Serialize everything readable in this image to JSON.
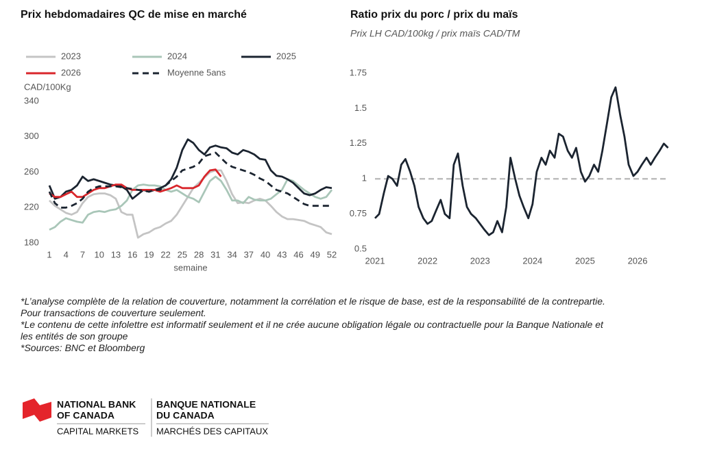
{
  "chart_data": [
    {
      "type": "line",
      "title": "Prix hebdomadaires QC de mise en marché",
      "y_label": "CAD/100Kg",
      "x_label": "semaine",
      "x": [
        1,
        2,
        3,
        4,
        5,
        6,
        7,
        8,
        9,
        10,
        11,
        12,
        13,
        14,
        15,
        16,
        17,
        18,
        19,
        20,
        21,
        22,
        23,
        24,
        25,
        26,
        27,
        28,
        29,
        30,
        31,
        32,
        33,
        34,
        35,
        36,
        37,
        38,
        39,
        40,
        41,
        42,
        43,
        44,
        45,
        46,
        47,
        48,
        49,
        50,
        51,
        52
      ],
      "xlim": [
        1,
        52
      ],
      "xticks": [
        1,
        4,
        7,
        10,
        13,
        16,
        19,
        22,
        25,
        28,
        31,
        34,
        37,
        40,
        43,
        46,
        49,
        52
      ],
      "ylim": [
        180,
        340
      ],
      "yticks": [
        180,
        220,
        260,
        300,
        340
      ],
      "grid": false,
      "series": [
        {
          "name": "2023",
          "color": "#c4c4c4",
          "style": "solid",
          "values": [
            228,
            222,
            218,
            214,
            212,
            215,
            225,
            232,
            235,
            236,
            236,
            234,
            230,
            215,
            212,
            212,
            186,
            190,
            192,
            196,
            198,
            202,
            205,
            212,
            222,
            232,
            242,
            248,
            254,
            260,
            262,
            262,
            250,
            235,
            225,
            226,
            225,
            228,
            230,
            228,
            222,
            215,
            210,
            207,
            207,
            206,
            205,
            202,
            200,
            198,
            192,
            190
          ]
        },
        {
          "name": "2024",
          "color": "#a9c6b8",
          "style": "solid",
          "values": [
            195,
            198,
            204,
            208,
            206,
            204,
            203,
            212,
            215,
            216,
            215,
            217,
            218,
            222,
            228,
            240,
            245,
            246,
            245,
            245,
            244,
            240,
            238,
            240,
            236,
            232,
            230,
            226,
            238,
            250,
            255,
            250,
            240,
            228,
            228,
            225,
            232,
            229,
            228,
            228,
            230,
            235,
            240,
            252,
            250,
            245,
            240,
            236,
            232,
            230,
            232,
            240
          ]
        },
        {
          "name": "2025",
          "color": "#1b2430",
          "style": "solid",
          "values": [
            245,
            230,
            232,
            238,
            240,
            245,
            255,
            250,
            252,
            250,
            248,
            246,
            245,
            244,
            240,
            230,
            235,
            240,
            238,
            240,
            242,
            245,
            252,
            265,
            285,
            297,
            293,
            285,
            280,
            288,
            290,
            288,
            287,
            282,
            280,
            285,
            283,
            280,
            275,
            274,
            262,
            256,
            255,
            252,
            248,
            242,
            236,
            234,
            236,
            240,
            243,
            242
          ]
        },
        {
          "name": "2026",
          "color": "#d9262b",
          "style": "solid",
          "values": [
            236,
            232,
            232,
            235,
            238,
            232,
            232,
            236,
            240,
            242,
            242,
            244,
            246,
            246,
            242,
            240,
            240,
            240,
            240,
            240,
            238,
            240,
            242,
            245,
            242,
            242,
            242,
            245,
            255,
            262,
            263,
            255,
            null,
            null,
            null,
            null,
            null,
            null,
            null,
            null,
            null,
            null,
            null,
            null,
            null,
            null,
            null,
            null,
            null,
            null,
            null,
            null
          ]
        },
        {
          "name": "Moyenne 5ans",
          "color": "#1b2430",
          "style": "dashed",
          "values": [
            238,
            225,
            220,
            220,
            222,
            225,
            230,
            238,
            242,
            244,
            244,
            244,
            244,
            243,
            242,
            241,
            240,
            239,
            238,
            240,
            240,
            245,
            250,
            255,
            262,
            264,
            266,
            270,
            278,
            280,
            282,
            276,
            270,
            266,
            264,
            262,
            260,
            257,
            253,
            250,
            245,
            240,
            238,
            236,
            232,
            228,
            224,
            222,
            222,
            222,
            222,
            222
          ]
        }
      ]
    },
    {
      "type": "line",
      "title": "Ratio prix du porc / prix du maïs",
      "subtitle": "Prix LH CAD/100kg / prix maïs CAD/TM",
      "x": [
        2021,
        2021.08,
        2021.17,
        2021.25,
        2021.33,
        2021.42,
        2021.5,
        2021.58,
        2021.67,
        2021.75,
        2021.83,
        2021.92,
        2022,
        2022.08,
        2022.17,
        2022.25,
        2022.33,
        2022.42,
        2022.5,
        2022.58,
        2022.67,
        2022.75,
        2022.83,
        2022.92,
        2023,
        2023.08,
        2023.17,
        2023.25,
        2023.33,
        2023.42,
        2023.5,
        2023.58,
        2023.67,
        2023.75,
        2023.83,
        2023.92,
        2024,
        2024.08,
        2024.17,
        2024.25,
        2024.33,
        2024.42,
        2024.5,
        2024.58,
        2024.67,
        2024.75,
        2024.83,
        2024.92,
        2025,
        2025.08,
        2025.17,
        2025.25,
        2025.33,
        2025.42,
        2025.5,
        2025.58,
        2025.67,
        2025.75,
        2025.83,
        2025.92,
        2026,
        2026.08,
        2026.17,
        2026.25,
        2026.33,
        2026.42,
        2026.5,
        2026.58
      ],
      "xlim": [
        2021,
        2026.6
      ],
      "xticks": [
        2021,
        2022,
        2023,
        2024,
        2025,
        2026
      ],
      "ylim": [
        0.5,
        1.75
      ],
      "yticks": [
        0.5,
        0.75,
        1,
        1.25,
        1.5,
        1.75
      ],
      "grid": false,
      "reference_line": {
        "value": 1,
        "color": "#bdbdbd",
        "style": "dashed"
      },
      "series": [
        {
          "name": "Ratio",
          "color": "#1b2430",
          "style": "solid",
          "values": [
            0.72,
            0.75,
            0.9,
            1.02,
            1.0,
            0.95,
            1.1,
            1.14,
            1.05,
            0.95,
            0.8,
            0.72,
            0.68,
            0.7,
            0.78,
            0.85,
            0.75,
            0.72,
            1.1,
            1.18,
            0.95,
            0.8,
            0.75,
            0.72,
            0.68,
            0.64,
            0.6,
            0.62,
            0.7,
            0.62,
            0.8,
            1.15,
            1.0,
            0.88,
            0.8,
            0.72,
            0.82,
            1.05,
            1.15,
            1.1,
            1.2,
            1.15,
            1.32,
            1.3,
            1.2,
            1.15,
            1.22,
            1.05,
            0.98,
            1.02,
            1.1,
            1.05,
            1.2,
            1.4,
            1.58,
            1.65,
            1.45,
            1.3,
            1.1,
            1.02,
            1.05,
            1.1,
            1.15,
            1.1,
            1.15,
            1.2,
            1.25,
            1.22
          ]
        }
      ]
    }
  ],
  "notes": [
    "*L’analyse complète de la relation de couverture, notamment la corrélation et le risque de base, est de la responsabilité de la contrepartie. Pour transactions de couverture seulement.",
    "*Le contenu de cette infolettre est informatif seulement et il ne crée aucune obligation légale ou contractuelle pour la Banque Nationale et les entités de son groupe",
    "*Sources: BNC et Bloomberg"
  ],
  "logo": {
    "en": [
      "NATIONAL BANK",
      "OF CANADA",
      "CAPITAL MARKETS"
    ],
    "fr": [
      "BANQUE NATIONALE",
      "DU CANADA",
      "MARCHÉS DES CAPITAUX"
    ]
  }
}
